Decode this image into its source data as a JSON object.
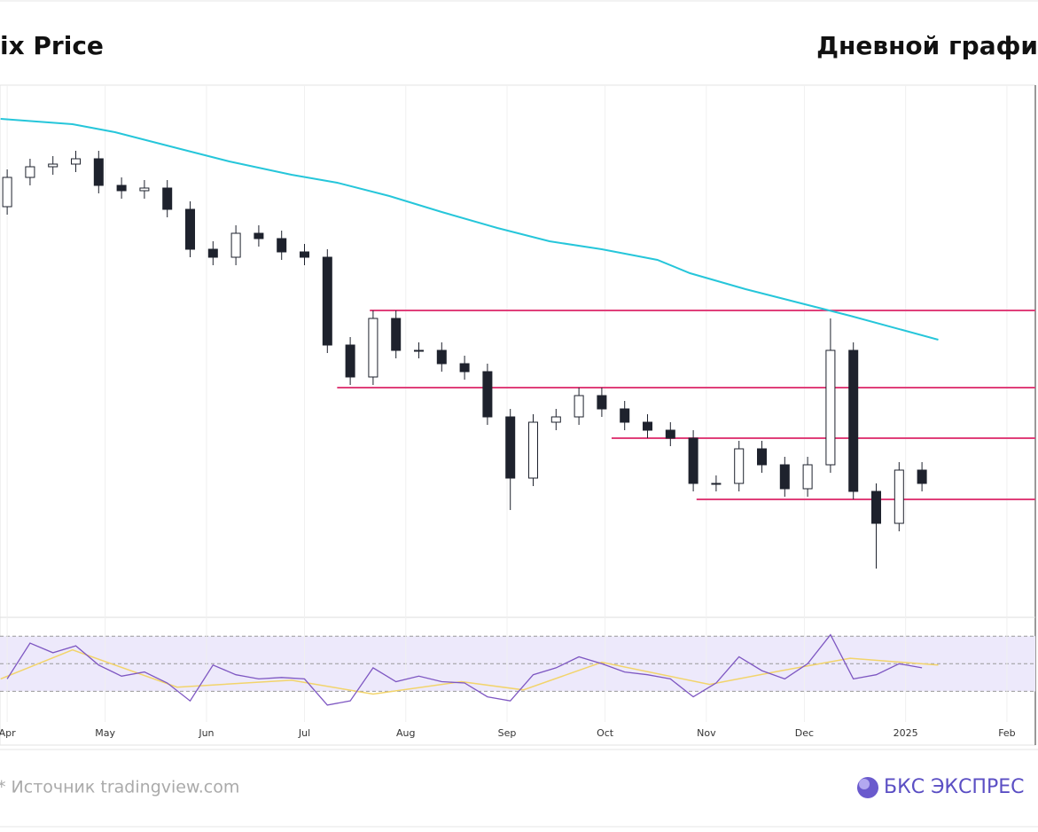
{
  "chart_data": {
    "type": "candlestick",
    "title": "ix Price",
    "subtitle": "Дневной графи",
    "x": [
      0,
      7,
      14,
      21,
      28,
      35,
      42,
      49,
      56,
      63,
      70,
      77,
      84,
      91,
      98,
      105,
      112,
      119,
      126,
      133,
      140,
      147,
      154,
      161,
      168,
      175,
      182,
      189,
      196,
      203,
      210,
      217,
      224,
      231,
      238,
      245,
      252,
      259,
      266,
      273,
      280
    ],
    "open": [
      77,
      82.5,
      84.5,
      85,
      86,
      81,
      80,
      80.5,
      76.5,
      69,
      67.5,
      72,
      71,
      68.5,
      67.5,
      51,
      45,
      56,
      50,
      50,
      47.5,
      46,
      37.5,
      26,
      36.5,
      37.5,
      41.5,
      39,
      36.5,
      35,
      33.5,
      25,
      25,
      31.5,
      28.5,
      24,
      28.5,
      50,
      23.5,
      17.5,
      27.5
    ],
    "high": [
      84,
      86,
      86.5,
      87.5,
      87.5,
      82.5,
      82,
      82,
      78,
      70.5,
      73.5,
      73.5,
      72.5,
      70,
      69,
      52.5,
      57.5,
      57.5,
      51.5,
      51.5,
      49,
      47.5,
      39,
      38,
      39,
      43,
      43,
      40.5,
      38,
      36.5,
      35,
      26.5,
      33,
      33,
      30,
      30,
      56,
      51.5,
      25,
      29,
      29
    ],
    "low": [
      75.5,
      81,
      83,
      83.5,
      79.5,
      78.5,
      78.5,
      75,
      67.5,
      66,
      66,
      69.5,
      67,
      66,
      49.5,
      43.5,
      43.5,
      48.5,
      48.5,
      46,
      44.5,
      36,
      20,
      24.5,
      35,
      36,
      37.5,
      35,
      33.5,
      32,
      23.5,
      23.5,
      23.5,
      27,
      22.5,
      22.5,
      27,
      22,
      9,
      16,
      23.5
    ],
    "close": [
      82.5,
      84.5,
      85,
      86,
      81,
      80,
      80.5,
      76.5,
      69,
      67.5,
      72,
      71,
      68.5,
      67.5,
      51,
      45,
      56,
      50,
      50,
      47.5,
      46,
      37.5,
      26,
      36.5,
      37.5,
      41.5,
      39,
      36.5,
      35,
      33.5,
      25,
      25,
      31.5,
      28.5,
      24,
      28.5,
      50,
      23.5,
      17.5,
      27.5,
      25
    ],
    "up_color": "#ffffff",
    "down_color": "#1e222d",
    "xlim": [
      -2.2,
      314.7
    ],
    "xticks": [
      {
        "value": 0,
        "label": "Apr"
      },
      {
        "value": 30,
        "label": "May"
      },
      {
        "value": 61,
        "label": "Jun"
      },
      {
        "value": 91,
        "label": "Jul"
      },
      {
        "value": 122,
        "label": "Aug"
      },
      {
        "value": 153,
        "label": "Sep"
      },
      {
        "value": 183,
        "label": "Oct"
      },
      {
        "value": 214,
        "label": "Nov"
      },
      {
        "value": 244,
        "label": "Dec"
      },
      {
        "value": 275,
        "label": "2025"
      },
      {
        "value": 306,
        "label": "Feb"
      }
    ],
    "ylim": [
      0,
      100
    ],
    "grid": true,
    "moving_average": {
      "color": "#26c6da",
      "x": [
        -2,
        20,
        33,
        52,
        68,
        87,
        101,
        117,
        133,
        150,
        166,
        182,
        199,
        209,
        226,
        242,
        258,
        285
      ],
      "values": [
        93.5,
        92.5,
        91,
        88,
        85.5,
        83,
        81.5,
        79,
        76,
        73,
        70.5,
        69,
        67,
        64.5,
        61.5,
        59,
        56.5,
        52
      ]
    },
    "levels": {
      "color": "#e0407a",
      "values": [
        57.5,
        43,
        33.5,
        22
      ],
      "starts": [
        111,
        101,
        185,
        211
      ]
    },
    "rsi": {
      "color": "#7e57c2",
      "ylim": [
        9,
        83
      ],
      "bands": [
        30,
        50,
        70
      ],
      "values": [
        39,
        65,
        58,
        63,
        49,
        41,
        44,
        36,
        23,
        49,
        42,
        39,
        40,
        39,
        20,
        23,
        47,
        37,
        41,
        37,
        36,
        26,
        23,
        42,
        47,
        55,
        50,
        44,
        42,
        39,
        26,
        36,
        55,
        45,
        39,
        50,
        71,
        39,
        42,
        50,
        47
      ],
      "ma": {
        "color": "#f2d46b",
        "x": [
          -2,
          20,
          52,
          87,
          112,
          139,
          158,
          182,
          215,
          237,
          258,
          285
        ],
        "values": [
          39,
          60,
          33,
          38,
          28,
          37,
          31,
          51,
          35,
          45,
          54,
          49
        ]
      }
    },
    "source": "* Источник tradingview.com",
    "logo": "БКС ЭКСПРЕС"
  }
}
